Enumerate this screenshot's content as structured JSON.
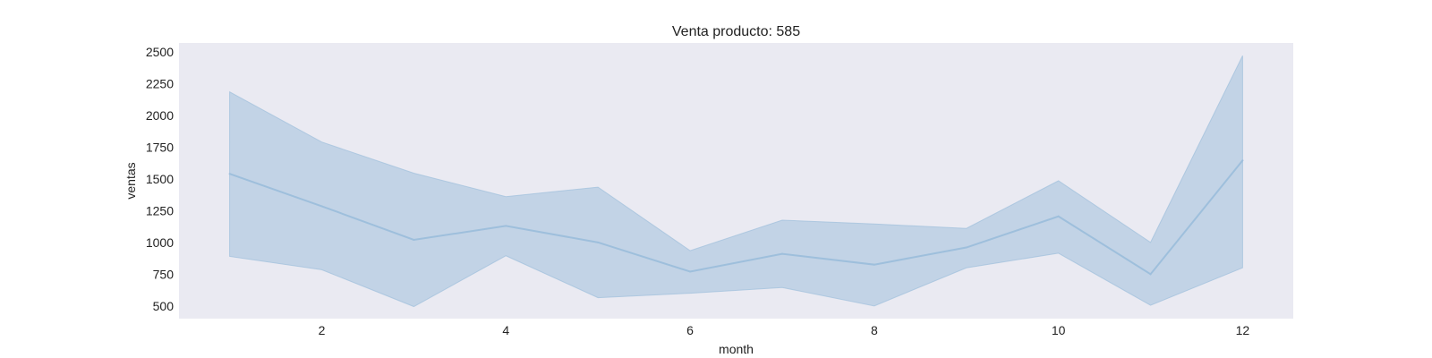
{
  "chart_data": {
    "type": "line",
    "title": "Venta producto: 585",
    "xlabel": "month",
    "ylabel": "ventas",
    "xlim": [
      0.45,
      12.55
    ],
    "ylim": [
      400,
      2570
    ],
    "xticks": [
      2,
      4,
      6,
      8,
      10,
      12
    ],
    "yticks": [
      500,
      750,
      1000,
      1250,
      1500,
      1750,
      2000,
      2250,
      2500
    ],
    "grid": false,
    "legend": "none",
    "colors": {
      "line": "#9ebfdc",
      "band": "#b3cbe1",
      "band_opacity": 0.72,
      "plot_background": "#eaeaf2"
    },
    "series": [
      {
        "x": [
          1,
          2,
          3,
          4,
          5,
          6,
          7,
          8,
          9,
          10,
          11,
          12
        ],
        "y": [
          1540,
          1285,
          1020,
          1130,
          1000,
          770,
          910,
          825,
          960,
          1205,
          750,
          1645
        ],
        "lower": [
          890,
          785,
          495,
          895,
          565,
          600,
          645,
          500,
          800,
          915,
          505,
          800
        ],
        "upper": [
          2185,
          1790,
          1545,
          1360,
          1435,
          935,
          1175,
          1145,
          1110,
          1485,
          1000,
          2470
        ]
      }
    ]
  }
}
